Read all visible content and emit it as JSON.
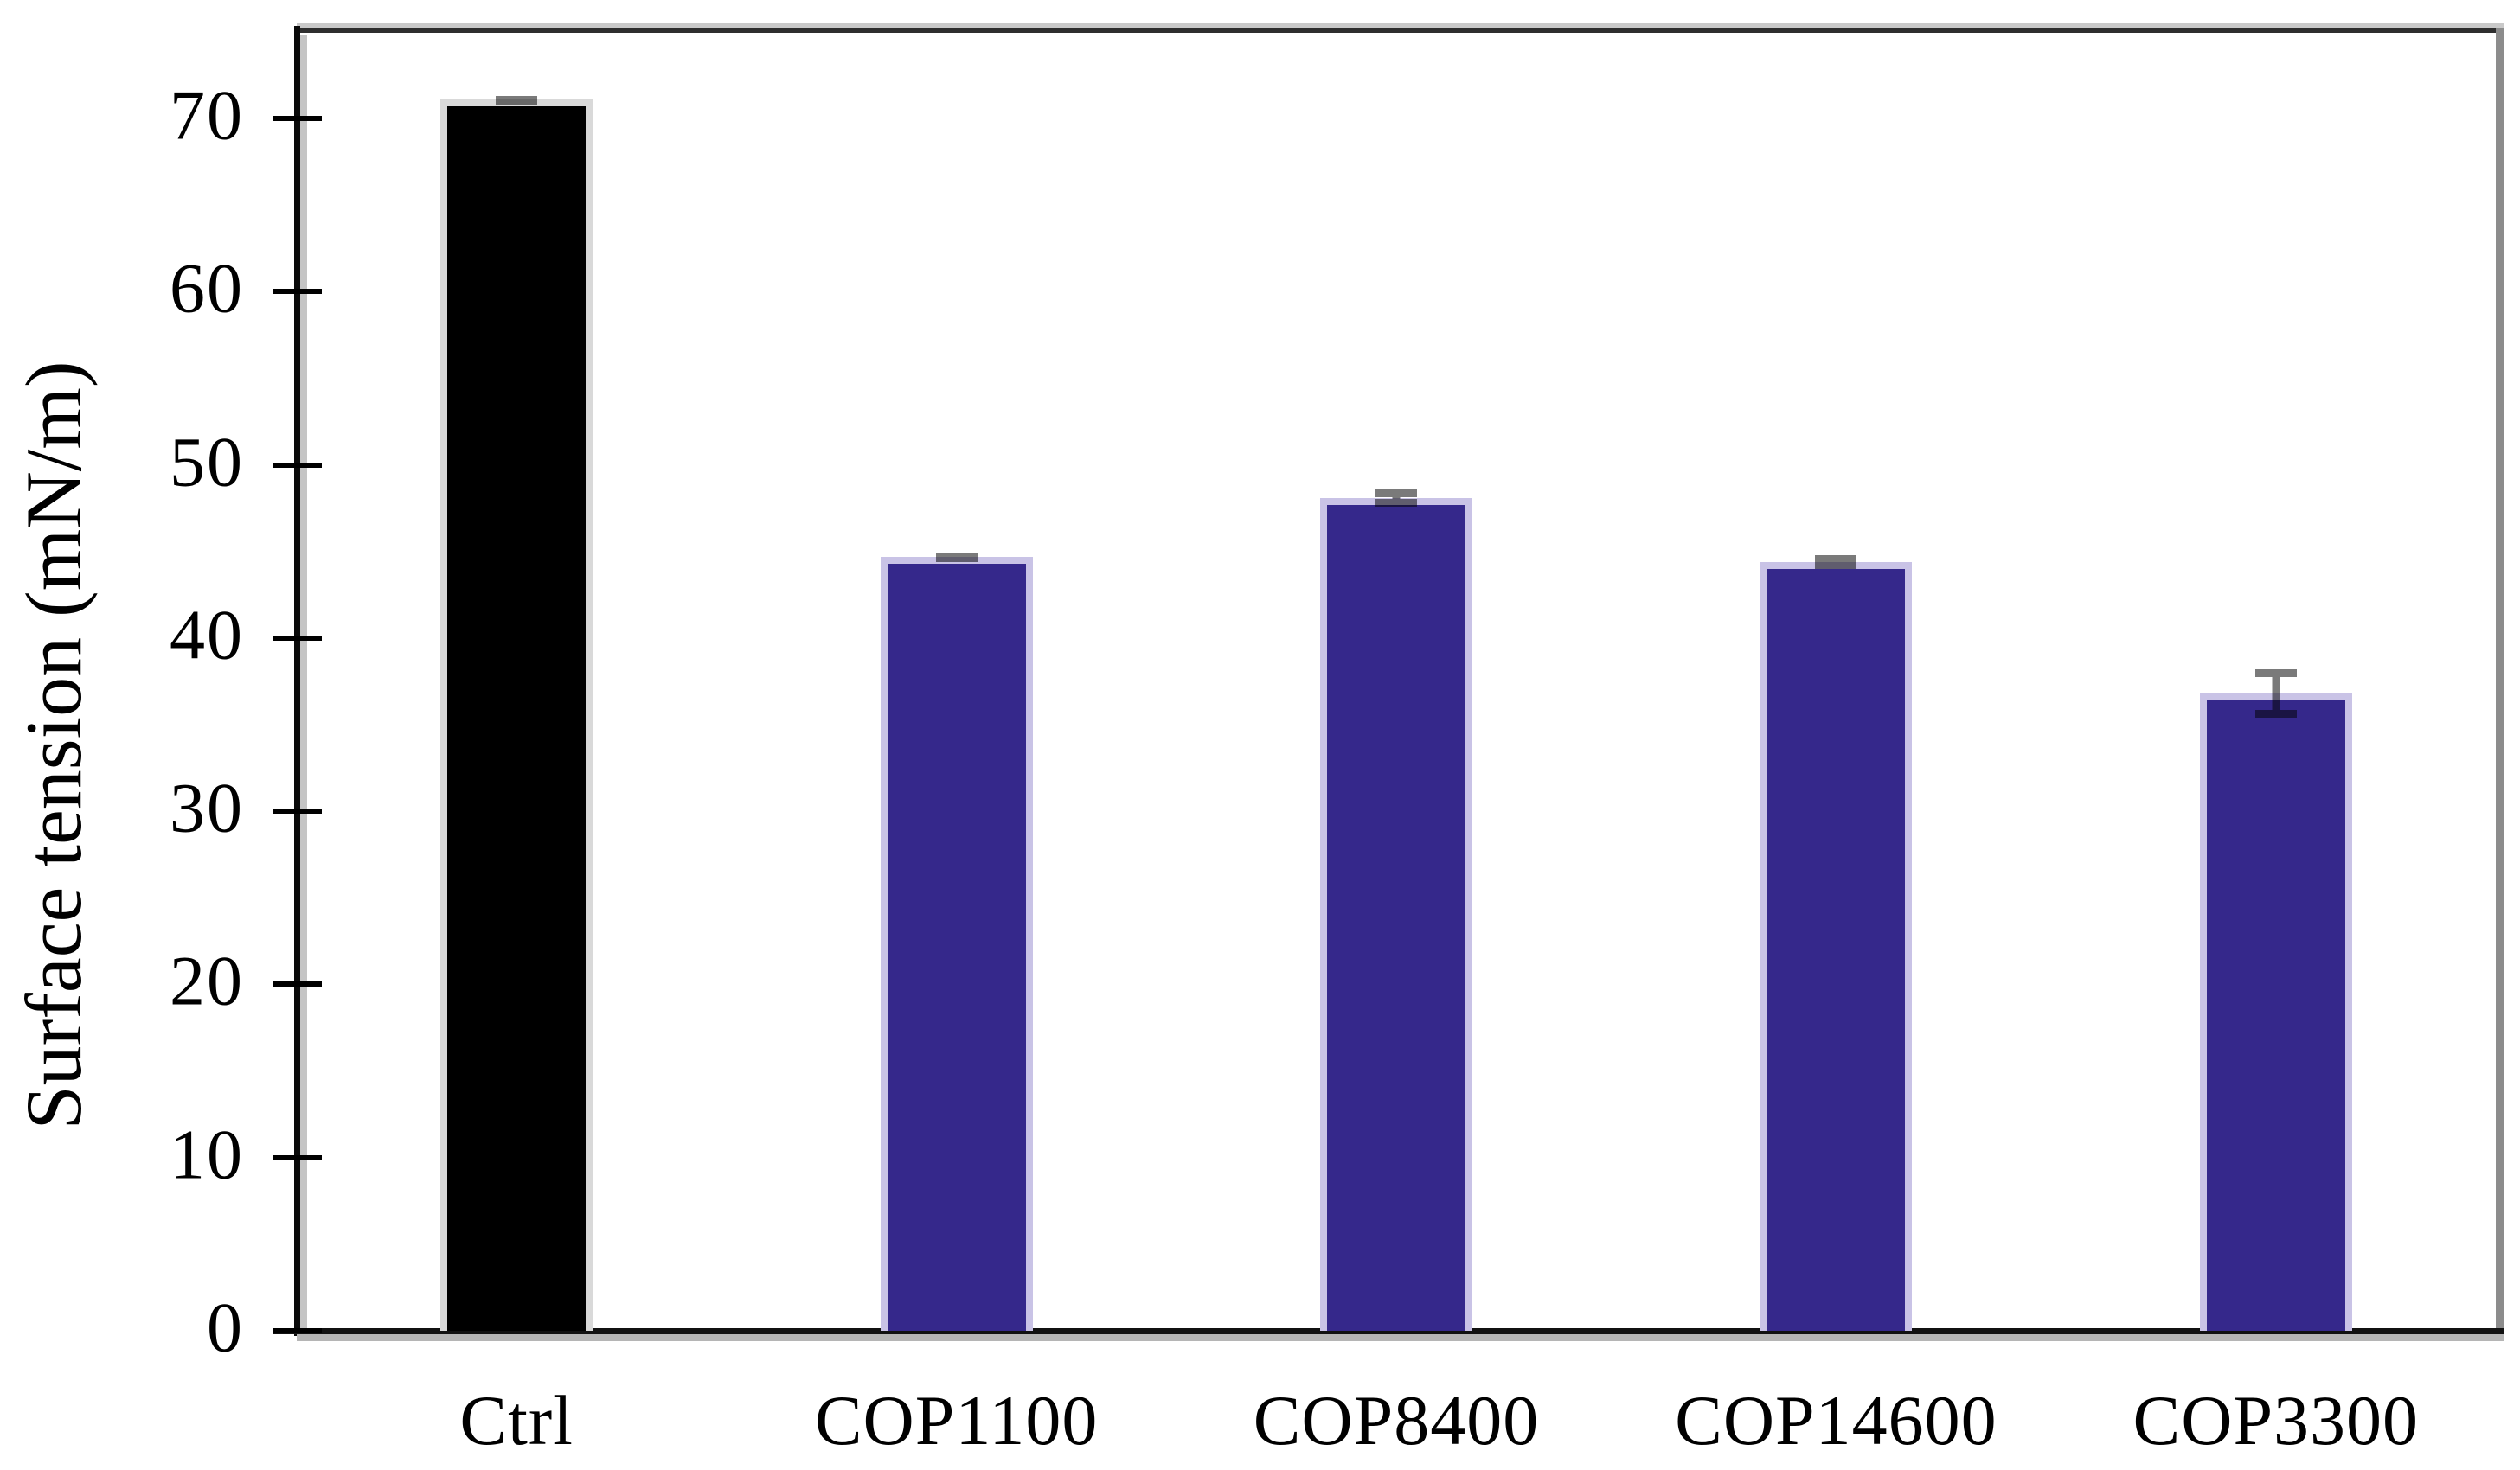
{
  "chart_data": {
    "type": "bar",
    "title": "",
    "xlabel": "",
    "ylabel": "Surface tension (mN/m)",
    "categories": [
      "Ctrl",
      "COP1100",
      "COP8400",
      "COP14600",
      "COP3300"
    ],
    "values": [
      71.1,
      44.7,
      48.1,
      44.4,
      36.8
    ],
    "error_bars": [
      0.2,
      0.2,
      0.5,
      0.4,
      1.4
    ],
    "yticks": [
      0,
      10,
      20,
      30,
      40,
      50,
      60,
      70
    ],
    "ylim": [
      0,
      75.1
    ],
    "grid": false,
    "legend": null,
    "bar_styles": [
      {
        "fill": "#000000",
        "border": "#d9d9d9"
      },
      {
        "fill": "#35288b",
        "border": "#c9c3e6"
      },
      {
        "fill": "#35288b",
        "border": "#c9c3e6"
      },
      {
        "fill": "#35288b",
        "border": "#c9c3e6"
      },
      {
        "fill": "#35288b",
        "border": "#c9c3e6"
      }
    ]
  },
  "colors": {
    "background": "#ffffff",
    "axis": "#0a0a0a",
    "axis_shadow": "#c4c4c4",
    "frame_top": "#2e2e2e",
    "frame_right": "#8c8c8c",
    "error_bar": "#7a7a7a"
  }
}
